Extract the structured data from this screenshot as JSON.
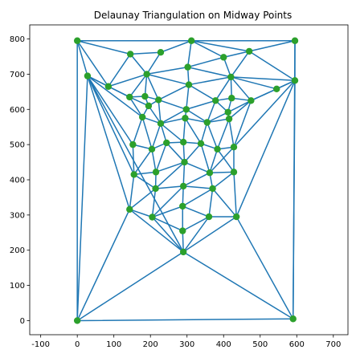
{
  "chart_data": {
    "type": "scatter",
    "title": "Delaunay Triangulation on Midway Points",
    "xlabel": "",
    "ylabel": "",
    "xlim": [
      -130,
      740
    ],
    "ylim": [
      -40,
      840
    ],
    "xticks": [
      -100,
      0,
      100,
      200,
      300,
      400,
      500,
      600,
      700
    ],
    "yticks": [
      0,
      100,
      200,
      300,
      400,
      500,
      600,
      700,
      800
    ],
    "grid": false,
    "edge_color": "#1f77b4",
    "point_color": "#2ca02c",
    "points": [
      [
        0,
        795
      ],
      [
        312,
        795
      ],
      [
        595,
        795
      ],
      [
        228,
        762
      ],
      [
        145,
        757
      ],
      [
        470,
        765
      ],
      [
        400,
        748
      ],
      [
        302,
        720
      ],
      [
        28,
        695
      ],
      [
        190,
        700
      ],
      [
        595,
        682
      ],
      [
        420,
        692
      ],
      [
        85,
        665
      ],
      [
        305,
        670
      ],
      [
        545,
        658
      ],
      [
        143,
        635
      ],
      [
        185,
        637
      ],
      [
        222,
        627
      ],
      [
        378,
        625
      ],
      [
        422,
        632
      ],
      [
        475,
        625
      ],
      [
        195,
        610
      ],
      [
        298,
        600
      ],
      [
        412,
        592
      ],
      [
        178,
        578
      ],
      [
        295,
        575
      ],
      [
        415,
        573
      ],
      [
        228,
        560
      ],
      [
        355,
        563
      ],
      [
        152,
        500
      ],
      [
        204,
        487
      ],
      [
        244,
        505
      ],
      [
        290,
        507
      ],
      [
        338,
        503
      ],
      [
        383,
        487
      ],
      [
        428,
        493
      ],
      [
        155,
        415
      ],
      [
        215,
        422
      ],
      [
        293,
        450
      ],
      [
        362,
        420
      ],
      [
        428,
        422
      ],
      [
        214,
        375
      ],
      [
        290,
        382
      ],
      [
        370,
        375
      ],
      [
        143,
        316
      ],
      [
        288,
        325
      ],
      [
        205,
        294
      ],
      [
        360,
        295
      ],
      [
        435,
        295
      ],
      [
        288,
        255
      ],
      [
        290,
        195
      ],
      [
        0,
        0
      ],
      [
        590,
        5
      ]
    ],
    "edges": [
      [
        0,
        1
      ],
      [
        1,
        2
      ],
      [
        0,
        4
      ],
      [
        4,
        3
      ],
      [
        3,
        1
      ],
      [
        0,
        8
      ],
      [
        0,
        12
      ],
      [
        0,
        51
      ],
      [
        8,
        51
      ],
      [
        8,
        12
      ],
      [
        12,
        4
      ],
      [
        12,
        9
      ],
      [
        12,
        15
      ],
      [
        8,
        15
      ],
      [
        8,
        24
      ],
      [
        8,
        29
      ],
      [
        8,
        36
      ],
      [
        8,
        44
      ],
      [
        8,
        50
      ],
      [
        4,
        9
      ],
      [
        3,
        9
      ],
      [
        9,
        7
      ],
      [
        1,
        7
      ],
      [
        7,
        6
      ],
      [
        1,
        6
      ],
      [
        6,
        5
      ],
      [
        1,
        5
      ],
      [
        5,
        2
      ],
      [
        2,
        10
      ],
      [
        5,
        10
      ],
      [
        5,
        11
      ],
      [
        6,
        11
      ],
      [
        7,
        11
      ],
      [
        7,
        13
      ],
      [
        9,
        13
      ],
      [
        9,
        16
      ],
      [
        9,
        15
      ],
      [
        9,
        17
      ],
      [
        15,
        16
      ],
      [
        16,
        17
      ],
      [
        13,
        17
      ],
      [
        13,
        18
      ],
      [
        13,
        11
      ],
      [
        11,
        18
      ],
      [
        11,
        19
      ],
      [
        11,
        20
      ],
      [
        11,
        14
      ],
      [
        11,
        10
      ],
      [
        10,
        14
      ],
      [
        14,
        20
      ],
      [
        10,
        20
      ],
      [
        10,
        35
      ],
      [
        10,
        48
      ],
      [
        10,
        52
      ],
      [
        52,
        50
      ],
      [
        52,
        48
      ],
      [
        2,
        52
      ],
      [
        18,
        19
      ],
      [
        19,
        20
      ],
      [
        18,
        23
      ],
      [
        19,
        23
      ],
      [
        20,
        23
      ],
      [
        20,
        35
      ],
      [
        23,
        26
      ],
      [
        23,
        28
      ],
      [
        18,
        28
      ],
      [
        13,
        22
      ],
      [
        17,
        22
      ],
      [
        22,
        18
      ],
      [
        22,
        28
      ],
      [
        22,
        25
      ],
      [
        17,
        21
      ],
      [
        16,
        21
      ],
      [
        15,
        21
      ],
      [
        15,
        24
      ],
      [
        21,
        24
      ],
      [
        21,
        27
      ],
      [
        17,
        27
      ],
      [
        22,
        27
      ],
      [
        27,
        25
      ],
      [
        25,
        28
      ],
      [
        26,
        28
      ],
      [
        26,
        35
      ],
      [
        26,
        34
      ],
      [
        20,
        26
      ],
      [
        28,
        34
      ],
      [
        28,
        33
      ],
      [
        25,
        33
      ],
      [
        25,
        32
      ],
      [
        27,
        32
      ],
      [
        27,
        31
      ],
      [
        24,
        27
      ],
      [
        24,
        29
      ],
      [
        24,
        30
      ],
      [
        27,
        30
      ],
      [
        30,
        31
      ],
      [
        31,
        32
      ],
      [
        32,
        33
      ],
      [
        33,
        34
      ],
      [
        34,
        35
      ],
      [
        29,
        30
      ],
      [
        29,
        36
      ],
      [
        30,
        36
      ],
      [
        30,
        37
      ],
      [
        31,
        37
      ],
      [
        31,
        38
      ],
      [
        32,
        38
      ],
      [
        33,
        38
      ],
      [
        33,
        39
      ],
      [
        34,
        39
      ],
      [
        35,
        39
      ],
      [
        35,
        40
      ],
      [
        34,
        40
      ],
      [
        39,
        40
      ],
      [
        38,
        39
      ],
      [
        37,
        38
      ],
      [
        36,
        37
      ],
      [
        36,
        41
      ],
      [
        37,
        41
      ],
      [
        38,
        41
      ],
      [
        38,
        42
      ],
      [
        39,
        42
      ],
      [
        39,
        43
      ],
      [
        40,
        43
      ],
      [
        40,
        48
      ],
      [
        43,
        48
      ],
      [
        42,
        43
      ],
      [
        41,
        42
      ],
      [
        36,
        44
      ],
      [
        41,
        44
      ],
      [
        44,
        46
      ],
      [
        41,
        46
      ],
      [
        42,
        46
      ],
      [
        42,
        45
      ],
      [
        43,
        45
      ],
      [
        43,
        47
      ],
      [
        45,
        47
      ],
      [
        47,
        48
      ],
      [
        45,
        46
      ],
      [
        46,
        49
      ],
      [
        45,
        49
      ],
      [
        47,
        49
      ],
      [
        46,
        50
      ],
      [
        49,
        50
      ],
      [
        47,
        50
      ],
      [
        48,
        50
      ],
      [
        44,
        50
      ],
      [
        44,
        51
      ],
      [
        50,
        51
      ],
      [
        51,
        52
      ]
    ]
  }
}
